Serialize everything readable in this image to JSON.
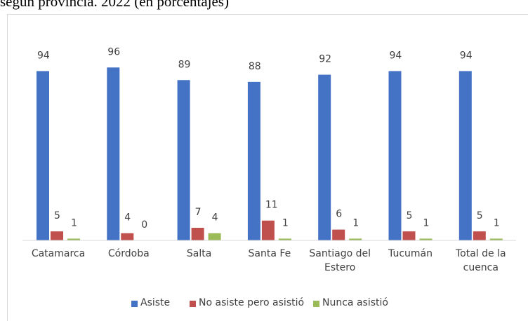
{
  "chart_data": {
    "type": "bar",
    "title": "según provincia. 2022 (en porcentajes)",
    "categories": [
      "Catamarca",
      "Córdoba",
      "Salta",
      "Santa Fe",
      "Santiago del Estero",
      "Tucumán",
      "Total de la cuenca"
    ],
    "series": [
      {
        "name": "Asiste",
        "color": "#4472c4",
        "values": [
          94,
          96,
          89,
          88,
          92,
          94,
          94
        ]
      },
      {
        "name": "No asiste pero asistió",
        "color": "#c0504d",
        "values": [
          5,
          4,
          7,
          11,
          6,
          5,
          5
        ]
      },
      {
        "name": "Nunca asistió",
        "color": "#9bbb59",
        "values": [
          1,
          0,
          4,
          1,
          1,
          1,
          1
        ]
      }
    ],
    "legend": "bottom"
  }
}
